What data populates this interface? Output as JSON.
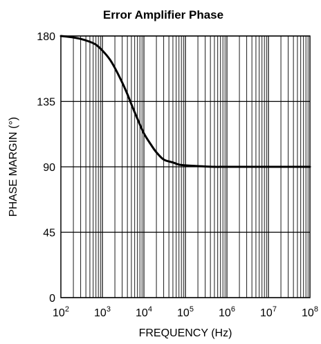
{
  "chart_data": {
    "type": "line",
    "title": "Error Amplifier Phase",
    "xlabel": "FREQUENCY (Hz)",
    "ylabel": "PHASE MARGIN (°)",
    "x_scale": "log",
    "xlim": [
      100,
      100000000
    ],
    "ylim": [
      0,
      180
    ],
    "grid": true,
    "x_ticks": [
      {
        "base": "10",
        "exp": "2",
        "value": 100
      },
      {
        "base": "10",
        "exp": "3",
        "value": 1000
      },
      {
        "base": "10",
        "exp": "4",
        "value": 10000
      },
      {
        "base": "10",
        "exp": "5",
        "value": 100000
      },
      {
        "base": "10",
        "exp": "6",
        "value": 1000000
      },
      {
        "base": "10",
        "exp": "7",
        "value": 10000000
      },
      {
        "base": "10",
        "exp": "8",
        "value": 100000000
      }
    ],
    "y_ticks": [
      "0",
      "45",
      "90",
      "135",
      "180"
    ],
    "series": [
      {
        "x": [
          100,
          200,
          300,
          500,
          700,
          1000,
          1500,
          2000,
          3000,
          4000,
          5000,
          7000,
          10000,
          15000,
          20000,
          30000,
          50000,
          70000,
          100000,
          200000,
          500000,
          1000000,
          10000000,
          100000000
        ],
        "y": [
          180,
          179,
          178,
          176,
          174,
          170,
          164,
          158,
          148,
          140,
          133,
          123,
          113,
          105,
          100,
          95,
          93,
          91.5,
          91,
          90.5,
          90,
          90,
          90,
          90
        ]
      }
    ]
  }
}
